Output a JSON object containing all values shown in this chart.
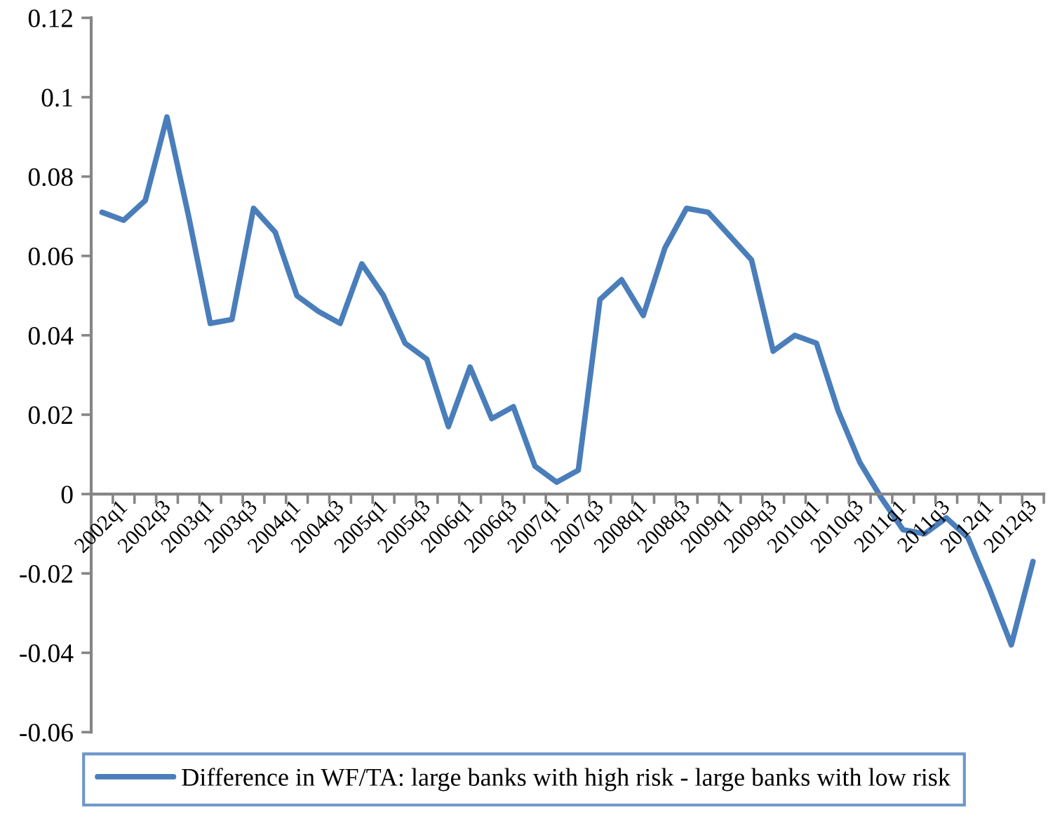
{
  "chart_data": {
    "type": "line",
    "categories": [
      "2002q1",
      null,
      "2002q3",
      null,
      "2003q1",
      null,
      "2003q3",
      null,
      "2004q1",
      null,
      "2004q3",
      null,
      "2005q1",
      null,
      "2005q3",
      null,
      "2006q1",
      null,
      "2006q3",
      null,
      "2007q1",
      null,
      "2007q3",
      null,
      "2008q1",
      null,
      "2008q3",
      null,
      "2009q1",
      null,
      "2009q3",
      null,
      "2010q1",
      null,
      "2010q3",
      null,
      "2011q1",
      null,
      "2011q3",
      null,
      "2012q1",
      null,
      "2012q3",
      null
    ],
    "series": [
      {
        "name": "Difference in WF/TA: large banks with high risk - large banks with low risk",
        "color": "#4a7ebb",
        "values": [
          0.071,
          0.069,
          0.074,
          0.095,
          0.07,
          0.043,
          0.044,
          0.072,
          0.066,
          0.05,
          0.046,
          0.043,
          0.058,
          0.05,
          0.038,
          0.034,
          0.017,
          0.032,
          0.019,
          0.022,
          0.007,
          0.003,
          0.006,
          0.049,
          0.054,
          0.045,
          0.062,
          0.072,
          0.071,
          0.065,
          0.059,
          0.036,
          0.04,
          0.038,
          0.021,
          0.008,
          -0.001,
          -0.009,
          -0.01,
          -0.006,
          -0.011,
          -0.024,
          -0.038,
          -0.017
        ]
      }
    ],
    "ylim": [
      -0.06,
      0.12
    ],
    "yticks": [
      -0.06,
      -0.04,
      -0.02,
      0,
      0.02,
      0.04,
      0.06,
      0.08,
      0.1,
      0.12
    ],
    "grid": false,
    "legend": "bottom",
    "line_style": "solid"
  }
}
